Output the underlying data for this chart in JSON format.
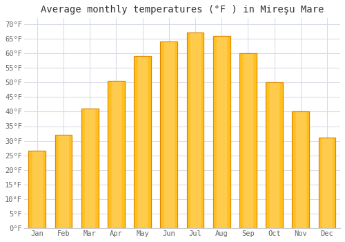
{
  "title": "Average monthly temperatures (°F ) in Mireşu Mare",
  "months": [
    "Jan",
    "Feb",
    "Mar",
    "Apr",
    "May",
    "Jun",
    "Jul",
    "Aug",
    "Sep",
    "Oct",
    "Nov",
    "Dec"
  ],
  "values": [
    26.5,
    32,
    41,
    50.5,
    59,
    64,
    67,
    66,
    60,
    50,
    40,
    31
  ],
  "bar_color": "#FFC020",
  "bar_edge_color": "#E08800",
  "background_color": "#ffffff",
  "grid_color": "#d8dce8",
  "ylim": [
    0,
    72
  ],
  "yticks": [
    0,
    5,
    10,
    15,
    20,
    25,
    30,
    35,
    40,
    45,
    50,
    55,
    60,
    65,
    70
  ],
  "ytick_labels": [
    "0°F",
    "5°F",
    "10°F",
    "15°F",
    "20°F",
    "25°F",
    "30°F",
    "35°F",
    "40°F",
    "45°F",
    "50°F",
    "55°F",
    "60°F",
    "65°F",
    "70°F"
  ],
  "title_fontsize": 10,
  "tick_fontsize": 7.5,
  "bar_width": 0.65
}
